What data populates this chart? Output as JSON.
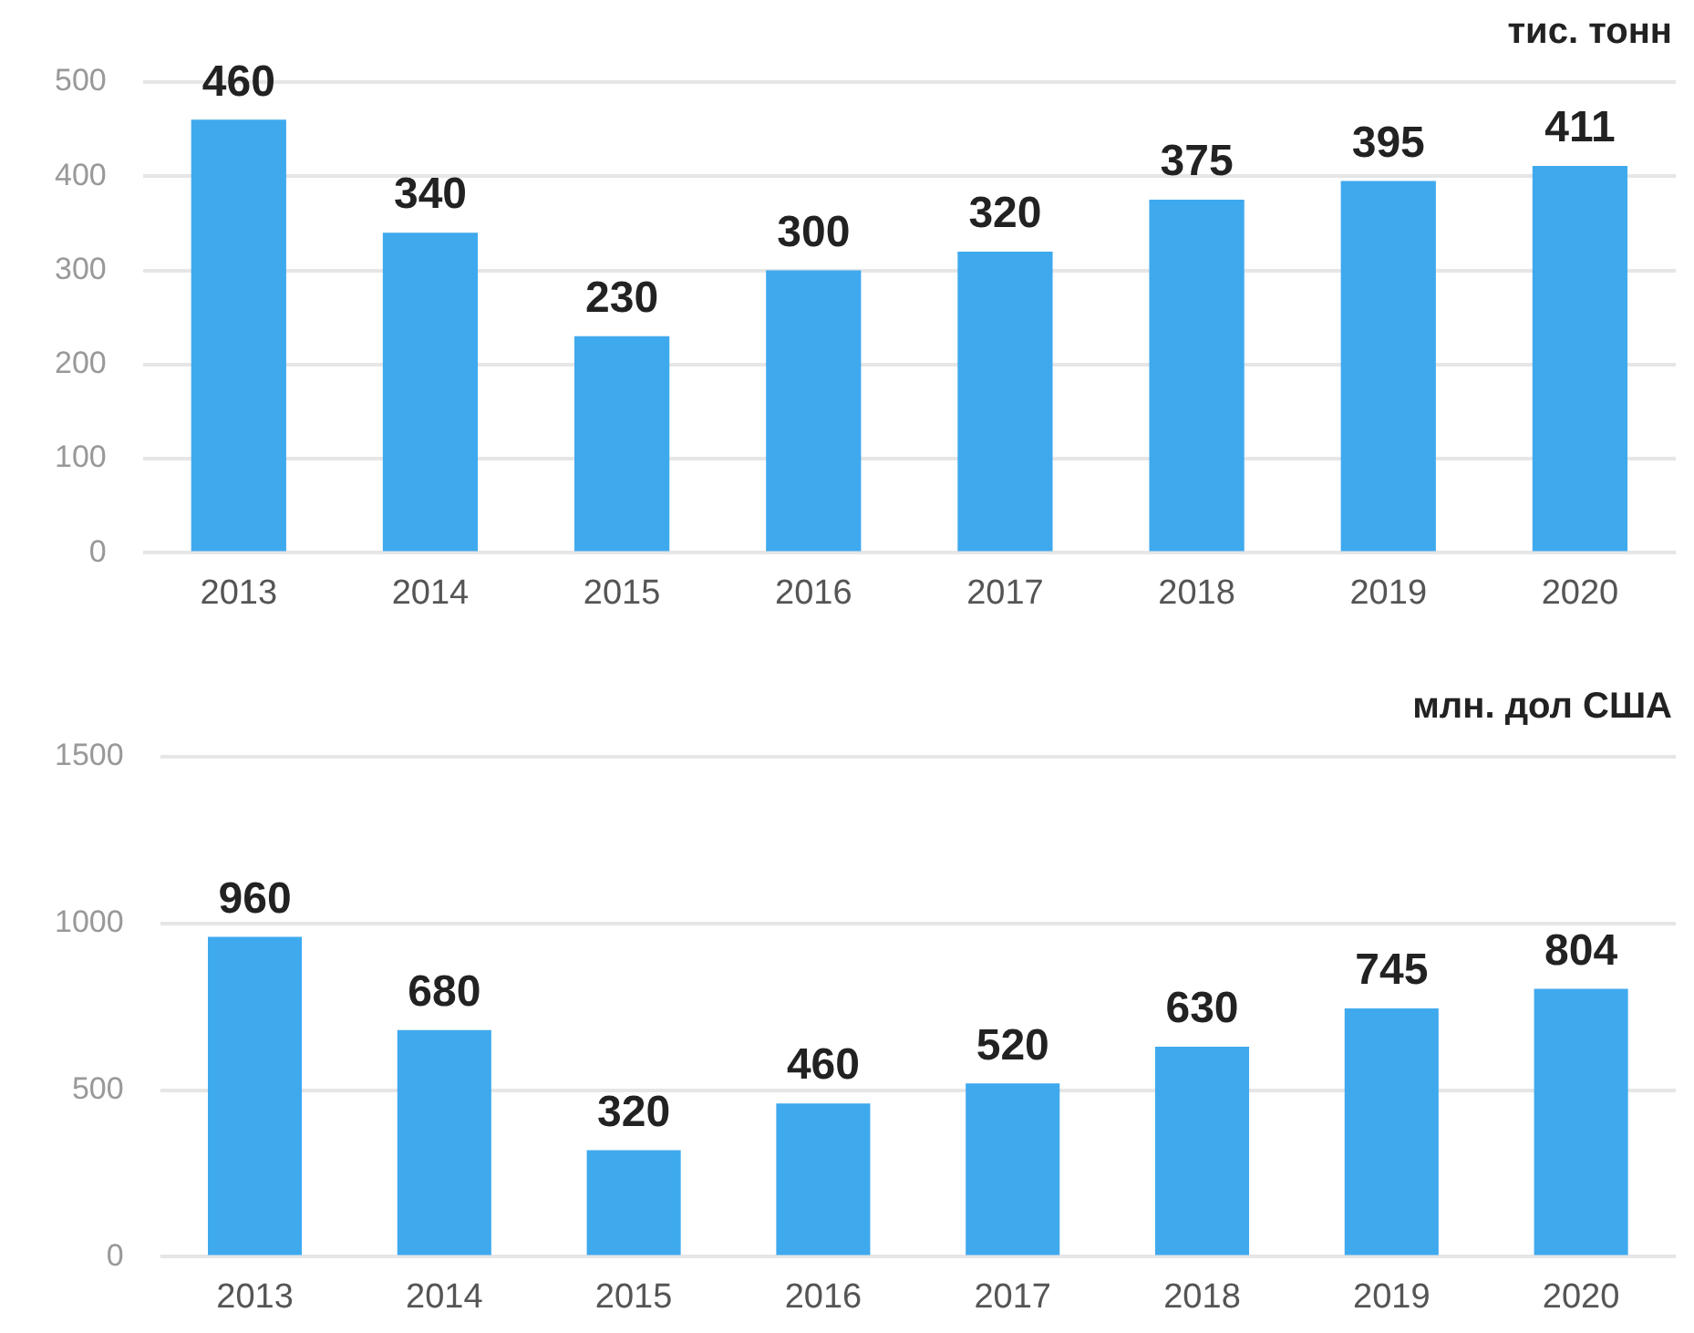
{
  "chart_data": [
    {
      "type": "bar",
      "categories": [
        "2013",
        "2014",
        "2015",
        "2016",
        "2017",
        "2018",
        "2019",
        "2020"
      ],
      "values": [
        460,
        340,
        230,
        300,
        320,
        375,
        395,
        411
      ],
      "color": "#3fa9ee",
      "ylim": [
        0,
        500
      ],
      "yticks": [
        0,
        100,
        200,
        300,
        400,
        500
      ],
      "grid": "y",
      "data_labels": true,
      "annotations": [
        "тис. тонн"
      ]
    },
    {
      "type": "bar",
      "categories": [
        "2013",
        "2014",
        "2015",
        "2016",
        "2017",
        "2018",
        "2019",
        "2020"
      ],
      "values": [
        960,
        680,
        320,
        460,
        520,
        630,
        745,
        804
      ],
      "color": "#3fa9ee",
      "ylim": [
        0,
        1500
      ],
      "yticks": [
        0,
        500,
        1000,
        1500
      ],
      "grid": "y",
      "data_labels": true,
      "annotations": [
        "млн. дол США"
      ]
    }
  ]
}
